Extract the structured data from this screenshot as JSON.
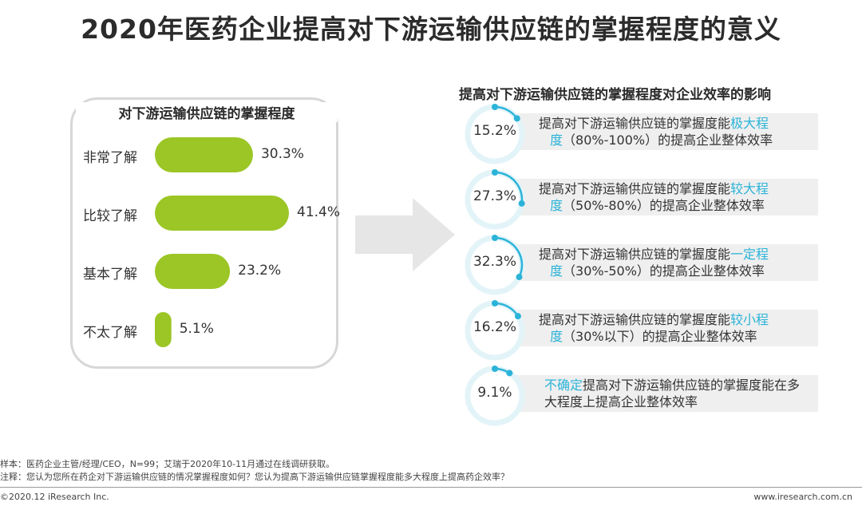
{
  "title": "2020年医药企业提高对下游运输供应链的掌握程度的意义",
  "chart_data": [
    {
      "type": "bar",
      "orientation": "horizontal",
      "title": "对下游运输供应链的掌握程度",
      "categories": [
        "非常了解",
        "比较了解",
        "基本了解",
        "不太了解"
      ],
      "values": [
        30.3,
        41.4,
        23.2,
        5.1
      ],
      "value_labels": [
        "30.3%",
        "41.4%",
        "23.2%",
        "5.1%"
      ],
      "unit": "%",
      "color": "#9bc625"
    },
    {
      "type": "gauge-list",
      "title": "提高对下游运输供应链的掌握程度对企业效率的影响",
      "items": [
        {
          "value": 15.2,
          "label": "15.2%",
          "text_before": "提高对下游运输供应链的掌握度能",
          "highlight": "极大程",
          "highlight2": "度",
          "text_after": "（80%-100%）的提高企业整体效率"
        },
        {
          "value": 27.3,
          "label": "27.3%",
          "text_before": "提高对下游运输供应链的掌握度能",
          "highlight": "较大程",
          "highlight2": "度",
          "text_after": "（50%-80%）的提高企业整体效率"
        },
        {
          "value": 32.3,
          "label": "32.3%",
          "text_before": "提高对下游运输供应链的掌握度能",
          "highlight": "一定程",
          "highlight2": "度",
          "text_after": "（30%-50%）的提高企业整体效率"
        },
        {
          "value": 16.2,
          "label": "16.2%",
          "text_before": "提高对下游运输供应链的掌握度能",
          "highlight": "较小程",
          "highlight2": "度",
          "text_after": "（30%以下）的提高企业整体效率"
        },
        {
          "value": 9.1,
          "label": "9.1%",
          "text_before": "",
          "highlight": "不确定",
          "highlight2": "",
          "text_after": "提高对下游运输供应链的掌握度能在多大程度上提高企业整体效率"
        }
      ],
      "accent_color": "#2bb3d8"
    }
  ],
  "footnotes": {
    "sample": "样本：医药企业主管/经理/CEO，N=99；艾瑞于2020年10-11月通过在线调研获取。",
    "note": "注释：您认为您所在药企对下游运输供应链的情况掌握程度如何？您认为提高下游运输供应链掌握程度能多大程度上提高药企效率？",
    "copyright": "©2020.12 iResearch Inc.",
    "site": "www.iresearch.com.cn"
  }
}
